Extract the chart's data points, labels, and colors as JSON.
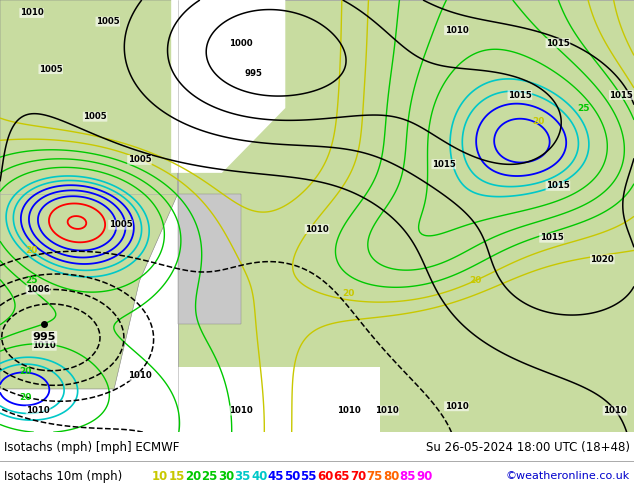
{
  "title_left": "Isotachs (mph) [mph] ECMWF",
  "title_right": "Su 26-05-2024 18:00 UTC (18+48)",
  "legend_label": "Isotachs 10m (mph)",
  "legend_values": [
    10,
    15,
    20,
    25,
    30,
    35,
    40,
    45,
    50,
    55,
    60,
    65,
    70,
    75,
    80,
    85,
    90
  ],
  "legend_colors": [
    "#c8c800",
    "#c8c800",
    "#00c800",
    "#00c800",
    "#00c800",
    "#00c8c8",
    "#00c8c8",
    "#0000ff",
    "#0000ff",
    "#0000ff",
    "#ff0000",
    "#ff0000",
    "#ff0000",
    "#ff6400",
    "#ff6400",
    "#ff00ff",
    "#ff00ff"
  ],
  "copyright": "©weatheronline.co.uk",
  "bottom_bg": "#ffffff",
  "figsize": [
    6.34,
    4.9
  ],
  "dpi": 100,
  "map_bg": "#ffffff",
  "land_green": "#c8dca0",
  "land_gray": "#c8c8c8",
  "sea_white": "#ffffff"
}
